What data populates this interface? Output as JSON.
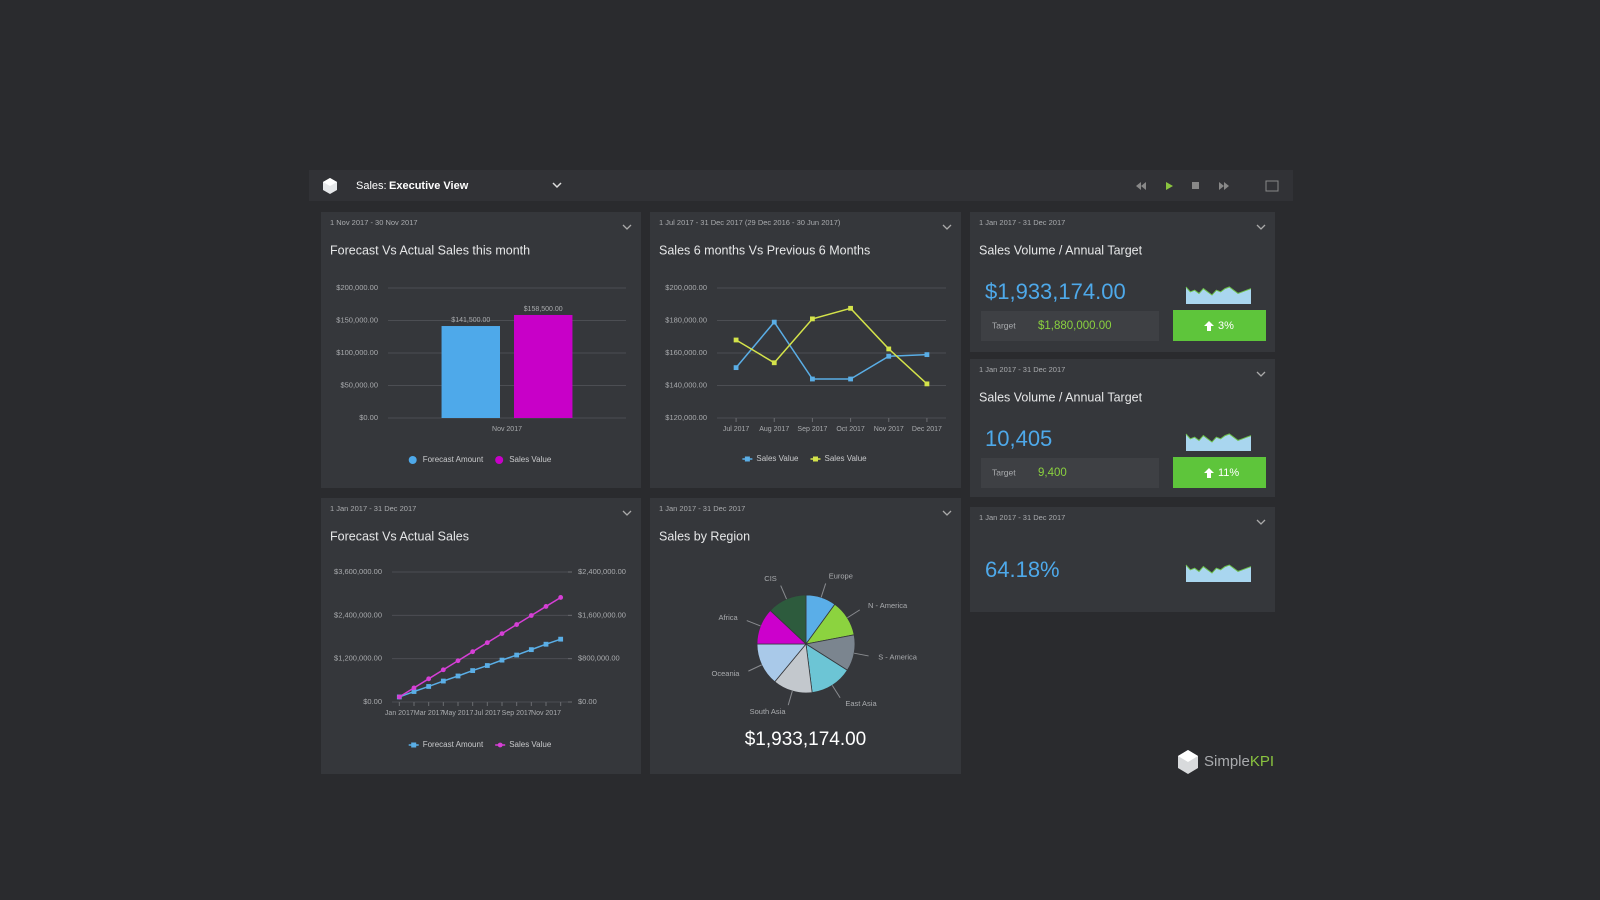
{
  "header": {
    "section": "Sales:",
    "view": "Executive View"
  },
  "chart_data": [
    {
      "type": "bar",
      "date_range": "1 Nov 2017 - 30 Nov 2017",
      "title": "Forecast Vs Actual Sales this month",
      "categories": [
        "Nov 2017"
      ],
      "series": [
        {
          "name": "Forecast Amount",
          "color": "#4ea9ea",
          "values": [
            141500
          ],
          "value_labels": [
            "$141,500.00"
          ]
        },
        {
          "name": "Sales Value",
          "color": "#c800c8",
          "values": [
            158500
          ],
          "value_labels": [
            "$158,500.00"
          ]
        }
      ],
      "ylim": [
        0,
        200000
      ],
      "yticks": [
        {
          "value": 0,
          "label": "$0.00"
        },
        {
          "value": 50000,
          "label": "$50,000.00"
        },
        {
          "value": 100000,
          "label": "$100,000.00"
        },
        {
          "value": 150000,
          "label": "$150,000.00"
        },
        {
          "value": 200000,
          "label": "$200,000.00"
        }
      ],
      "grid": true,
      "legend": "bottom"
    },
    {
      "type": "line",
      "date_range": "1 Jul 2017 - 31 Dec 2017  (29 Dec 2016 - 30 Jun 2017)",
      "title": "Sales 6 months Vs Previous 6 Months",
      "categories": [
        "Jul 2017",
        "Aug 2017",
        "Sep 2017",
        "Oct 2017",
        "Nov 2017",
        "Dec 2017"
      ],
      "series": [
        {
          "name": "Sales Value",
          "color": "#5aaee6",
          "marker": "square",
          "values": [
            151000,
            179000,
            144000,
            144000,
            158000,
            159000
          ]
        },
        {
          "name": "Sales Value",
          "color": "#d4e34a",
          "marker": "square",
          "values": [
            168000,
            154000,
            181000,
            187500,
            162500,
            141000
          ]
        }
      ],
      "ylim": [
        120000,
        200000
      ],
      "yticks": [
        {
          "value": 120000,
          "label": "$120,000.00"
        },
        {
          "value": 140000,
          "label": "$140,000.00"
        },
        {
          "value": 160000,
          "label": "$160,000.00"
        },
        {
          "value": 180000,
          "label": "$180,000.00"
        },
        {
          "value": 200000,
          "label": "$200,000.00"
        }
      ],
      "grid": true,
      "legend": "bottom"
    },
    {
      "type": "line",
      "date_range": "1 Jan 2017 - 31 Dec 2017",
      "title": "Forecast Vs Actual Sales",
      "categories": [
        "Jan 2017",
        null,
        "Mar 2017",
        null,
        "May 2017",
        null,
        "Jul 2017",
        null,
        "Sep 2017",
        null,
        "Nov 2017",
        null
      ],
      "series": [
        {
          "name": "Forecast Amount",
          "color": "#5aaee6",
          "marker": "square",
          "values": [
            140000,
            290000,
            430000,
            580000,
            720000,
            870000,
            1010000,
            1160000,
            1300000,
            1450000,
            1600000,
            1740000
          ]
        },
        {
          "name": "Sales Value",
          "color": "#d63fd6",
          "marker": "circle",
          "axis": "y2",
          "values": [
            94000,
            261000,
            428000,
            595000,
            762000,
            929000,
            1096000,
            1263000,
            1430000,
            1597000,
            1764000,
            1930000
          ]
        }
      ],
      "ylim": [
        0,
        3600000
      ],
      "yticks": [
        {
          "value": 0,
          "label": "$0.00"
        },
        {
          "value": 1200000,
          "label": "$1,200,000.00"
        },
        {
          "value": 2400000,
          "label": "$2,400,000.00"
        },
        {
          "value": 3600000,
          "label": "$3,600,000.00"
        }
      ],
      "y2lim": [
        0,
        2400000
      ],
      "y2ticks": [
        {
          "value": 0,
          "label": "$0.00"
        },
        {
          "value": 800000,
          "label": "$800,000.00"
        },
        {
          "value": 1600000,
          "label": "$1,600,000.00"
        },
        {
          "value": 2400000,
          "label": "$2,400,000.00"
        }
      ],
      "grid": true,
      "legend": "bottom"
    },
    {
      "type": "pie",
      "date_range": "1 Jan 2017 - 31 Dec 2017",
      "title": "Sales by Region",
      "categories": [
        "Europe",
        "N - America",
        "S - America",
        "East Asia",
        "South Asia",
        "Oceania",
        "Africa",
        "CIS"
      ],
      "values": [
        10,
        12,
        12,
        14,
        13,
        14,
        12,
        13
      ],
      "colors": [
        "#5aaee8",
        "#8cd33f",
        "#7b858f",
        "#6cc5d5",
        "#c3c8cd",
        "#a9c9e9",
        "#cc00cc",
        "#2d5b3d"
      ],
      "total_label": "$1,933,174.00"
    }
  ],
  "kpis": [
    {
      "date_range": "1 Jan 2017 - 31 Dec 2017",
      "title": "Sales Volume / Annual Target",
      "value": "$1,933,174.00",
      "target_label": "Target",
      "target": "$1,880,000.00",
      "change": "3%"
    },
    {
      "date_range": "1 Jan 2017 - 31 Dec 2017",
      "title": "Sales Volume / Annual Target",
      "value": "10,405",
      "target_label": "Target",
      "target": "9,400",
      "change": "11%"
    },
    {
      "date_range": "1 Jan 2017 - 31 Dec 2017",
      "value": "64.18%"
    }
  ],
  "brand": {
    "simple": "Simple",
    "kpi": "KPI"
  }
}
